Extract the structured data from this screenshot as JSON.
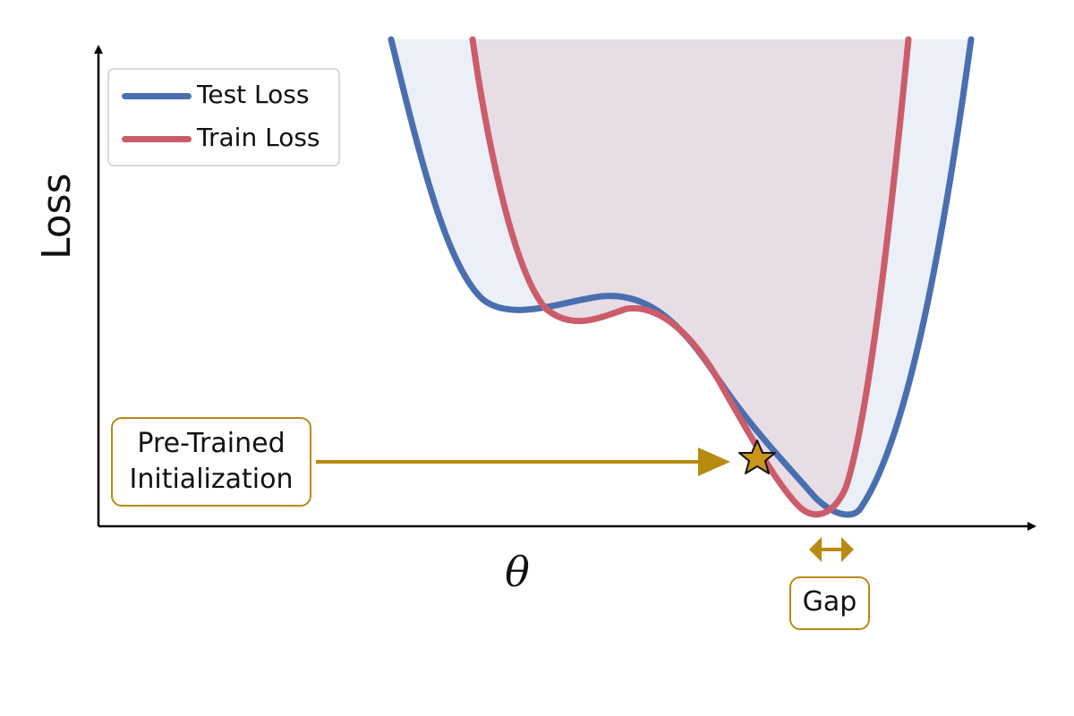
{
  "axes": {
    "x_label": "θ",
    "y_label": "Loss"
  },
  "legend": {
    "test_label": "Test Loss",
    "train_label": "Train Loss",
    "test_color": "#4a6fb0",
    "train_color": "#cc5c6a"
  },
  "annotations": {
    "init_label_line1": "Pre-Trained",
    "init_label_line2": "Initialization",
    "gap_label": "Gap",
    "accent_color": "#b88a12"
  },
  "icons": {
    "init_marker": "star-icon",
    "gap_marker": "double-arrow-icon"
  }
}
